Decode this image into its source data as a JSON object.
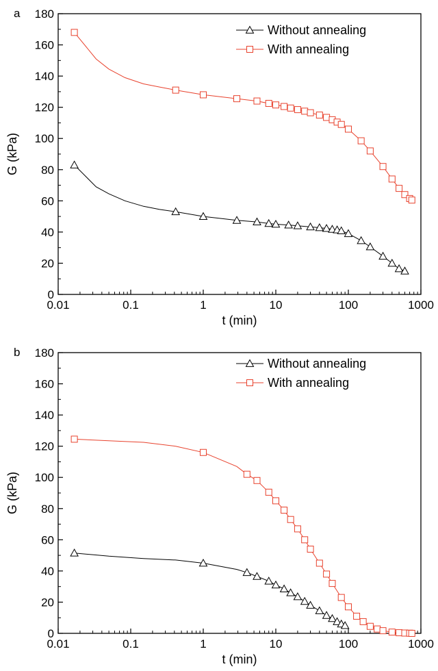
{
  "chart_data": [
    {
      "type": "line",
      "panel_label": "a",
      "xlabel": "t (min)",
      "ylabel": "G (kPa)",
      "xscale": "log",
      "xlim": [
        0.01,
        1000
      ],
      "ylim": [
        0,
        180
      ],
      "x_ticks": [
        0.01,
        0.1,
        1,
        10,
        100,
        1000
      ],
      "x_tick_labels": [
        "0.01",
        "0.1",
        "1",
        "10",
        "100",
        "1000"
      ],
      "y_ticks": [
        0,
        20,
        40,
        60,
        80,
        100,
        120,
        140,
        160,
        180
      ],
      "y_tick_labels": [
        "0",
        "20",
        "40",
        "60",
        "80",
        "100",
        "120",
        "140",
        "160",
        "180"
      ],
      "grid": false,
      "legend_position": "top-right",
      "series": [
        {
          "name": "Without annealing",
          "color": "#000000",
          "marker": "triangle",
          "x": [
            0.0167,
            0.0333,
            0.05,
            0.0833,
            0.15,
            0.25,
            0.4167,
            1,
            2.9,
            5.5,
            8,
            10,
            15,
            20,
            30,
            40,
            50,
            60,
            70,
            80,
            100,
            150,
            200,
            300,
            400,
            500,
            600
          ],
          "y": [
            83,
            69,
            64.5,
            60,
            56.5,
            54.5,
            53,
            50,
            47.5,
            46.5,
            45.5,
            45,
            44.5,
            44,
            43.3,
            42.8,
            42.3,
            41.8,
            41.4,
            40.8,
            39,
            34.5,
            30.5,
            24.5,
            20,
            16.5,
            15
          ]
        },
        {
          "name": "With annealing",
          "color": "#e8412c",
          "marker": "square",
          "x": [
            0.0167,
            0.0333,
            0.05,
            0.0833,
            0.15,
            0.25,
            0.4167,
            1,
            2.9,
            5.5,
            8,
            10,
            13,
            16,
            20,
            25,
            30,
            40,
            50,
            60,
            70,
            80,
            100,
            150,
            200,
            300,
            400,
            500,
            600,
            700,
            750
          ],
          "y": [
            168,
            151,
            144.5,
            139,
            135,
            133,
            131,
            128,
            125.5,
            124,
            122.5,
            121.5,
            120.5,
            119.5,
            118.5,
            117.5,
            116.5,
            115,
            113.5,
            112,
            110.5,
            109,
            106,
            98.5,
            92,
            82,
            74,
            68,
            64,
            61.5,
            60.5
          ]
        }
      ]
    },
    {
      "type": "line",
      "panel_label": "b",
      "xlabel": "t (min)",
      "ylabel": "G (kPa)",
      "xscale": "log",
      "xlim": [
        0.01,
        1000
      ],
      "ylim": [
        0,
        180
      ],
      "x_ticks": [
        0.01,
        0.1,
        1,
        10,
        100,
        1000
      ],
      "x_tick_labels": [
        "0.01",
        "0.1",
        "1",
        "10",
        "100",
        "1000"
      ],
      "y_ticks": [
        0,
        20,
        40,
        60,
        80,
        100,
        120,
        140,
        160,
        180
      ],
      "y_tick_labels": [
        "0",
        "20",
        "40",
        "60",
        "80",
        "100",
        "120",
        "140",
        "160",
        "180"
      ],
      "grid": false,
      "legend_position": "top-right",
      "series": [
        {
          "name": "Without annealing",
          "color": "#000000",
          "marker": "triangle",
          "x": [
            0.0167,
            0.05,
            0.15,
            0.4167,
            1,
            2.9,
            4,
            5.5,
            8,
            10,
            13,
            16,
            20,
            25,
            30,
            40,
            50,
            60,
            70,
            80,
            90
          ],
          "y": [
            51.5,
            49.5,
            48,
            47,
            45,
            41,
            39,
            36.5,
            33.5,
            31,
            28.5,
            26,
            23.5,
            20.5,
            18,
            14.5,
            11.5,
            9.5,
            7.5,
            6,
            5
          ]
        },
        {
          "name": "With annealing",
          "color": "#e8412c",
          "marker": "square",
          "x": [
            0.0167,
            0.05,
            0.15,
            0.4167,
            1,
            2.9,
            4,
            5.5,
            8,
            10,
            13,
            16,
            20,
            25,
            30,
            40,
            50,
            60,
            80,
            100,
            130,
            160,
            200,
            250,
            300,
            400,
            500,
            600,
            700,
            750
          ],
          "y": [
            124.5,
            123.5,
            122.5,
            120,
            116,
            107,
            102,
            98,
            90.5,
            85,
            79,
            73,
            67,
            60,
            54,
            45,
            38,
            32,
            23,
            17,
            11,
            7.5,
            4.5,
            2.8,
            1.7,
            0.8,
            0.4,
            0.2,
            0.1,
            0
          ]
        }
      ]
    }
  ]
}
